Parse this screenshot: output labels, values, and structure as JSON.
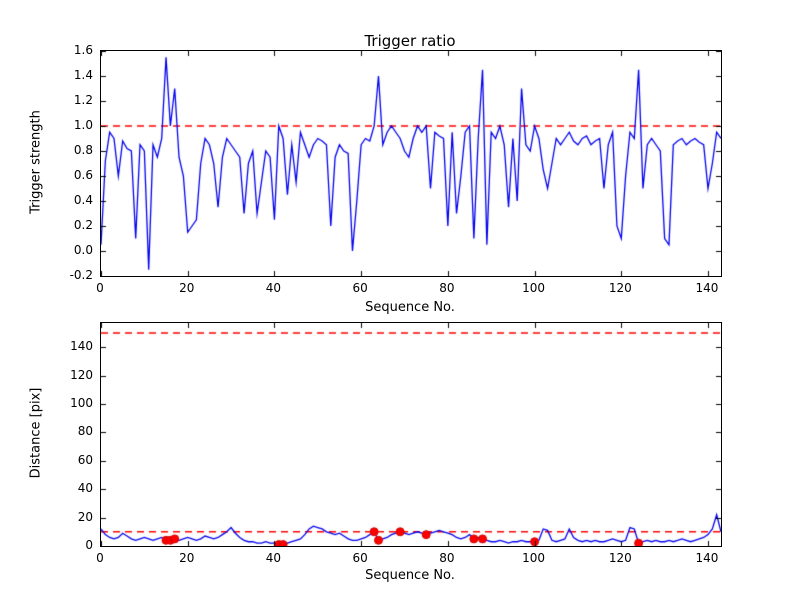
{
  "figure": {
    "background": "#ffffff"
  },
  "chart_data": [
    {
      "type": "line",
      "title": "Trigger ratio",
      "xlabel": "Sequence No.",
      "ylabel": "Trigger strength",
      "xlim": [
        0,
        143
      ],
      "ylim": [
        -0.2,
        1.6
      ],
      "grid": false,
      "legend": "none",
      "xticks": {
        "values": [
          0,
          20,
          40,
          60,
          80,
          100,
          120,
          140
        ],
        "labels": [
          "0",
          "20",
          "40",
          "60",
          "80",
          "100",
          "120",
          "140"
        ]
      },
      "yticks": {
        "values": [
          -0.2,
          0.0,
          0.2,
          0.4,
          0.6,
          0.8,
          1.0,
          1.2,
          1.4,
          1.6
        ],
        "labels": [
          "-0.2",
          "0.0",
          "0.2",
          "0.4",
          "0.6",
          "0.8",
          "1.0",
          "1.2",
          "1.4",
          "1.6"
        ]
      },
      "thresholds": [
        1.0
      ],
      "threshold_color": "#ff0000",
      "series": [
        {
          "name": "trigger-strength",
          "color": "#0000ee",
          "values": [
            0.05,
            0.72,
            0.95,
            0.9,
            0.6,
            0.88,
            0.82,
            0.8,
            0.1,
            0.85,
            0.8,
            -0.15,
            0.85,
            0.75,
            0.9,
            1.55,
            1.0,
            1.3,
            0.75,
            0.6,
            0.15,
            0.2,
            0.25,
            0.7,
            0.9,
            0.85,
            0.7,
            0.35,
            0.75,
            0.9,
            0.85,
            0.8,
            0.75,
            0.3,
            0.7,
            0.8,
            0.3,
            0.55,
            0.8,
            0.75,
            0.25,
            1.0,
            0.9,
            0.45,
            0.85,
            0.55,
            0.95,
            0.85,
            0.75,
            0.85,
            0.9,
            0.88,
            0.85,
            0.2,
            0.75,
            0.85,
            0.8,
            0.78,
            0.0,
            0.4,
            0.85,
            0.9,
            0.88,
            1.0,
            1.4,
            0.85,
            0.95,
            1.0,
            0.95,
            0.9,
            0.8,
            0.75,
            0.9,
            1.0,
            0.95,
            1.0,
            0.5,
            0.95,
            0.92,
            0.9,
            0.2,
            0.95,
            0.3,
            0.6,
            0.95,
            1.0,
            0.1,
            0.9,
            1.45,
            0.05,
            0.95,
            0.9,
            1.0,
            0.85,
            0.35,
            0.9,
            0.4,
            1.3,
            0.85,
            0.8,
            1.0,
            0.9,
            0.65,
            0.5,
            0.7,
            0.9,
            0.85,
            0.9,
            0.95,
            0.88,
            0.85,
            0.9,
            0.92,
            0.85,
            0.88,
            0.9,
            0.5,
            0.85,
            0.95,
            0.2,
            0.1,
            0.6,
            0.95,
            0.9,
            1.45,
            0.5,
            0.85,
            0.9,
            0.85,
            0.8,
            0.1,
            0.05,
            0.85,
            0.88,
            0.9,
            0.85,
            0.88,
            0.9,
            0.87,
            0.85,
            0.5,
            0.7,
            0.95,
            0.9
          ]
        }
      ]
    },
    {
      "type": "line",
      "title": "",
      "xlabel": "Sequence No.",
      "ylabel": "Distance [pix]",
      "xlim": [
        0,
        143
      ],
      "ylim": [
        0,
        157
      ],
      "grid": false,
      "legend": "none",
      "xticks": {
        "values": [
          0,
          20,
          40,
          60,
          80,
          100,
          120,
          140
        ],
        "labels": [
          "0",
          "20",
          "40",
          "60",
          "80",
          "100",
          "120",
          "140"
        ]
      },
      "yticks": {
        "values": [
          0,
          20,
          40,
          60,
          80,
          100,
          120,
          140
        ],
        "labels": [
          "0",
          "20",
          "40",
          "60",
          "80",
          "100",
          "120",
          "140"
        ]
      },
      "thresholds": [
        150,
        10
      ],
      "threshold_color": "#ff0000",
      "series": [
        {
          "name": "distance",
          "color": "#0000ee",
          "values": [
            12,
            8,
            6,
            5,
            6,
            9,
            7,
            5,
            4,
            5,
            6,
            5,
            4,
            5,
            6,
            4,
            4,
            5,
            4,
            5,
            6,
            5,
            4,
            5,
            7,
            6,
            5,
            6,
            8,
            10,
            13,
            9,
            6,
            4,
            3,
            3,
            2,
            2,
            3,
            2,
            2,
            1,
            1,
            2,
            3,
            4,
            5,
            8,
            12,
            14,
            13,
            12,
            10,
            9,
            8,
            9,
            7,
            5,
            4,
            4,
            5,
            6,
            8,
            10,
            4,
            5,
            6,
            8,
            9,
            10,
            9,
            8,
            9,
            10,
            9,
            8,
            9,
            10,
            11,
            10,
            9,
            8,
            6,
            5,
            6,
            8,
            5,
            6,
            5,
            4,
            3,
            3,
            4,
            3,
            2,
            3,
            3,
            4,
            3,
            3,
            3,
            4,
            12,
            11,
            4,
            3,
            4,
            5,
            12,
            6,
            4,
            3,
            4,
            3,
            4,
            3,
            3,
            4,
            5,
            4,
            3,
            4,
            13,
            12,
            2,
            3,
            4,
            3,
            4,
            3,
            3,
            4,
            3,
            4,
            5,
            4,
            3,
            4,
            5,
            6,
            8,
            12,
            22,
            10
          ]
        }
      ],
      "markers": {
        "name": "trigger-event-dots",
        "shape": "circle",
        "color": "#ff0000",
        "edge": "#cc0000",
        "x": [
          15,
          16,
          17,
          41,
          42,
          63,
          64,
          69,
          75,
          86,
          88,
          100,
          124
        ],
        "y": [
          4,
          4,
          5,
          1,
          1,
          10,
          4,
          10,
          8,
          5,
          5,
          3,
          2
        ]
      }
    }
  ]
}
